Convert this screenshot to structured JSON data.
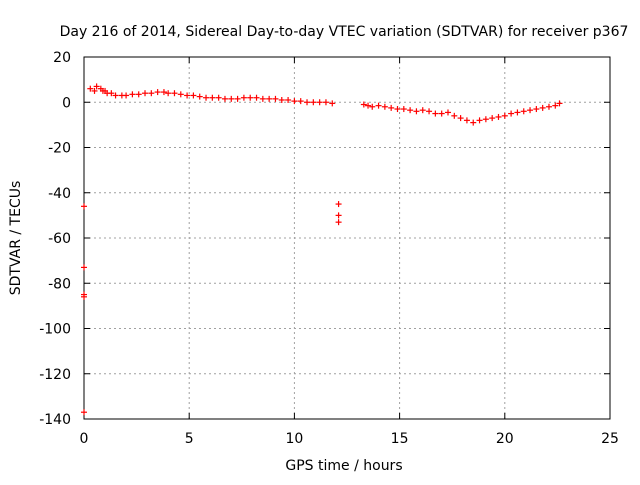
{
  "chart_data": {
    "type": "scatter",
    "title": "Day 216 of 2014, Sidereal Day-to-day VTEC variation (SDTVAR) for receiver p367",
    "xlabel": "GPS time / hours",
    "ylabel": "SDTVAR / TECUs",
    "xlim": [
      0,
      25
    ],
    "ylim": [
      -140,
      20
    ],
    "xticks": [
      0,
      5,
      10,
      15,
      20,
      25
    ],
    "yticks": [
      20,
      0,
      -20,
      -40,
      -60,
      -80,
      -100,
      -120,
      -140
    ],
    "grid": true,
    "marker": "+",
    "series": [
      {
        "name": "SDTVAR",
        "color": "#ff0000",
        "points": [
          [
            0.3,
            6
          ],
          [
            0.5,
            5
          ],
          [
            0.6,
            7
          ],
          [
            0.8,
            6
          ],
          [
            0.9,
            5
          ],
          [
            1.0,
            5
          ],
          [
            1.1,
            4
          ],
          [
            1.3,
            4
          ],
          [
            1.5,
            3
          ],
          [
            1.8,
            3
          ],
          [
            2.0,
            3
          ],
          [
            2.3,
            3.5
          ],
          [
            2.6,
            3.5
          ],
          [
            2.9,
            4
          ],
          [
            3.2,
            4
          ],
          [
            3.5,
            4.5
          ],
          [
            3.8,
            4.5
          ],
          [
            4.0,
            4
          ],
          [
            4.3,
            4
          ],
          [
            4.6,
            3.5
          ],
          [
            4.9,
            3
          ],
          [
            5.2,
            3
          ],
          [
            5.5,
            2.5
          ],
          [
            5.8,
            2
          ],
          [
            6.1,
            2
          ],
          [
            6.4,
            2
          ],
          [
            6.7,
            1.5
          ],
          [
            7.0,
            1.5
          ],
          [
            7.3,
            1.5
          ],
          [
            7.6,
            2
          ],
          [
            7.9,
            2
          ],
          [
            8.2,
            2
          ],
          [
            8.5,
            1.5
          ],
          [
            8.8,
            1.5
          ],
          [
            9.1,
            1.5
          ],
          [
            9.4,
            1
          ],
          [
            9.7,
            1
          ],
          [
            10.0,
            0.5
          ],
          [
            10.3,
            0.5
          ],
          [
            10.6,
            0
          ],
          [
            10.9,
            0
          ],
          [
            11.2,
            0
          ],
          [
            11.5,
            0
          ],
          [
            11.8,
            -0.5
          ],
          [
            13.3,
            -1
          ],
          [
            13.5,
            -1.5
          ],
          [
            13.7,
            -2
          ],
          [
            14.0,
            -1.5
          ],
          [
            14.3,
            -2
          ],
          [
            14.6,
            -2.5
          ],
          [
            14.9,
            -3
          ],
          [
            15.2,
            -3
          ],
          [
            15.5,
            -3.5
          ],
          [
            15.8,
            -4
          ],
          [
            16.1,
            -3.5
          ],
          [
            16.4,
            -4
          ],
          [
            16.7,
            -5
          ],
          [
            17.0,
            -5
          ],
          [
            17.3,
            -4.5
          ],
          [
            17.6,
            -6
          ],
          [
            17.9,
            -7
          ],
          [
            18.2,
            -8
          ],
          [
            18.5,
            -9
          ],
          [
            18.8,
            -8
          ],
          [
            19.1,
            -7.5
          ],
          [
            19.4,
            -7
          ],
          [
            19.7,
            -6.5
          ],
          [
            20.0,
            -6
          ],
          [
            20.3,
            -5
          ],
          [
            20.6,
            -4.5
          ],
          [
            20.9,
            -4
          ],
          [
            21.2,
            -3.5
          ],
          [
            21.5,
            -3
          ],
          [
            21.8,
            -2.5
          ],
          [
            22.1,
            -2
          ],
          [
            22.4,
            -1.5
          ],
          [
            22.6,
            -0.5
          ],
          [
            12.1,
            -45
          ],
          [
            12.1,
            -50
          ],
          [
            12.1,
            -53
          ],
          [
            0.0,
            -46
          ],
          [
            0.0,
            -73
          ],
          [
            0.0,
            -85
          ],
          [
            0.0,
            -86
          ],
          [
            0.0,
            -137
          ]
        ]
      }
    ]
  }
}
